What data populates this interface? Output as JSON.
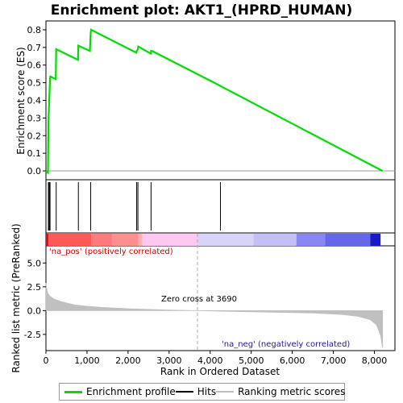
{
  "chart_data": {
    "type": "line",
    "title": "Enrichment plot: AKT1_(HPRD_HUMAN)",
    "top_panel": {
      "ylabel": "Enrichment score (ES)",
      "ylim": [
        -0.05,
        0.85
      ],
      "yticks": [
        "0.0",
        "0.1",
        "0.2",
        "0.3",
        "0.4",
        "0.5",
        "0.6",
        "0.7",
        "0.8"
      ],
      "series": [
        {
          "name": "Enrichment profile",
          "color": "#00dd00",
          "x": [
            0,
            50,
            60,
            100,
            110,
            240,
            250,
            780,
            790,
            1070,
            1080,
            1090,
            1100,
            2200,
            2210,
            2240,
            2250,
            2550,
            2560,
            2600,
            4250,
            4260,
            8200
          ],
          "y": [
            0.0,
            -0.01,
            0.28,
            0.53,
            0.535,
            0.52,
            0.69,
            0.63,
            0.71,
            0.68,
            0.73,
            0.78,
            0.8,
            0.67,
            0.68,
            0.69,
            0.705,
            0.665,
            0.68,
            0.678,
            0.482,
            0.48,
            0.0
          ]
        }
      ]
    },
    "hits_panel": {
      "hit_positions": [
        60,
        80,
        100,
        250,
        790,
        1090,
        2210,
        2240,
        2560,
        4250
      ]
    },
    "bottom_panel": {
      "ylabel": "Ranked list metric (PreRanked)",
      "xlabel": "Rank in Ordered Dataset",
      "ylim": [
        -4.2,
        6.8
      ],
      "yticks": [
        "-2.5",
        "0.0",
        "2.5",
        "5.0"
      ],
      "xticks": [
        "0",
        "1,000",
        "2,000",
        "3,000",
        "4,000",
        "5,000",
        "6,000",
        "7,000",
        "8,000"
      ],
      "xlim": [
        0,
        8500
      ],
      "metric_series": {
        "name": "Ranking metric scores",
        "color": "#c0c0c0",
        "x": [
          0,
          20,
          50,
          100,
          200,
          400,
          700,
          1000,
          1500,
          2000,
          2500,
          3000,
          3690,
          4500,
          5500,
          6500,
          7200,
          7600,
          7900,
          8050,
          8150,
          8200
        ],
        "y": [
          2.9,
          2.3,
          1.8,
          1.5,
          1.2,
          0.9,
          0.6,
          0.45,
          0.3,
          0.2,
          0.12,
          0.06,
          0.0,
          -0.08,
          -0.16,
          -0.26,
          -0.4,
          -0.6,
          -0.95,
          -1.5,
          -2.6,
          -3.9
        ]
      },
      "zero_cross_rank": 3690,
      "annotations": {
        "pos": "'na_pos' (positively correlated)",
        "neg": "'na_neg' (negatively correlated)",
        "zero": "Zero cross at 3690"
      }
    },
    "colorbar": {
      "segments": [
        {
          "to": 60,
          "color": "#ff0000"
        },
        {
          "to": 1100,
          "color": "#ff5a5a"
        },
        {
          "to": 1600,
          "color": "#ff7a7a"
        },
        {
          "to": 2250,
          "color": "#ff9090"
        },
        {
          "to": 2350,
          "color": "#ffb0b0"
        },
        {
          "to": 3690,
          "color": "#ffc8f0"
        },
        {
          "to": 5050,
          "color": "#d8d4f8"
        },
        {
          "to": 6100,
          "color": "#c4c0f6"
        },
        {
          "to": 6800,
          "color": "#8888f0"
        },
        {
          "to": 7900,
          "color": "#6666e8"
        },
        {
          "to": 8150,
          "color": "#1a1ac0"
        }
      ]
    }
  },
  "legend": {
    "items": [
      {
        "label": "Enrichment profile",
        "color": "#00dd00"
      },
      {
        "label": "Hits",
        "color": "#000000"
      },
      {
        "label": "Ranking metric scores",
        "color": "#c0c0c0"
      }
    ]
  }
}
